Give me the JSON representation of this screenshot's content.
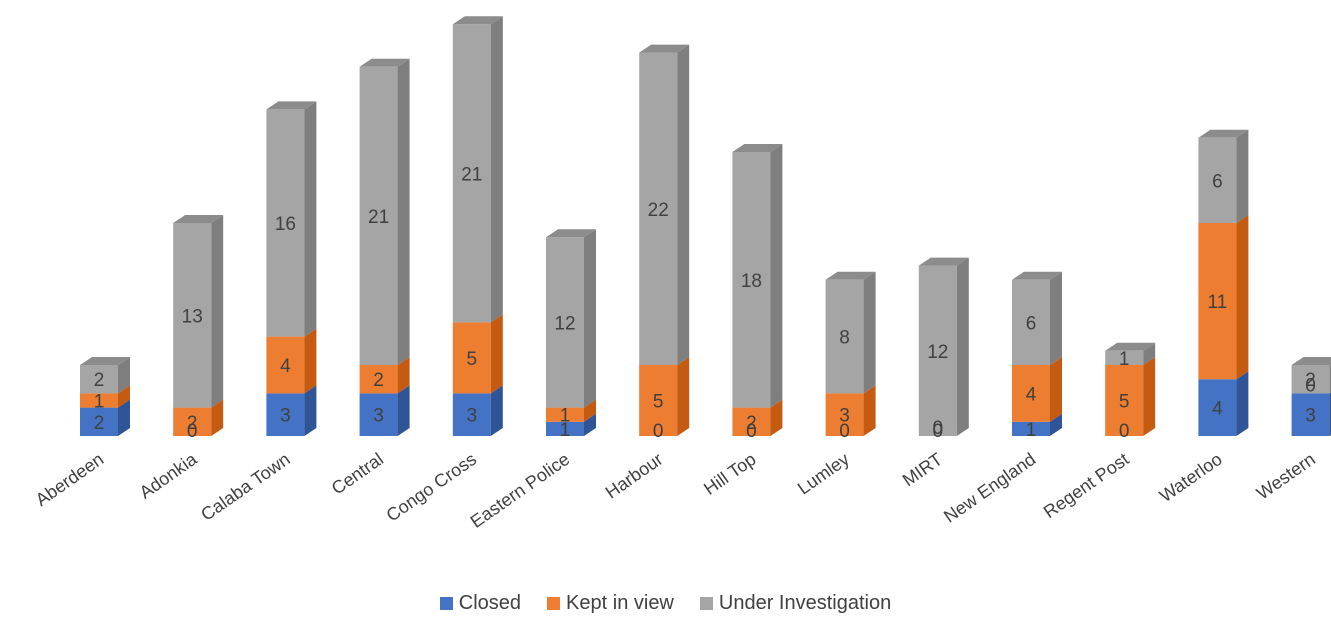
{
  "chart_data": {
    "type": "bar",
    "stacked": true,
    "three_d": true,
    "categories": [
      "Aberdeen",
      "Adonkia",
      "Calaba Town",
      "Central",
      "Congo Cross",
      "Eastern Police",
      "Harbour",
      "Hill Top",
      "Lumley",
      "MIRT",
      "New England",
      "Regent Post",
      "Waterloo",
      "Western"
    ],
    "series": [
      {
        "name": "Closed",
        "color": "#4472C4",
        "values": [
          2,
          0,
          3,
          3,
          3,
          1,
          0,
          0,
          0,
          0,
          1,
          0,
          4,
          3
        ]
      },
      {
        "name": "Kept in view",
        "color": "#ED7D31",
        "values": [
          1,
          2,
          4,
          2,
          5,
          1,
          5,
          2,
          3,
          0,
          4,
          5,
          11,
          0
        ]
      },
      {
        "name": "Under Investigation",
        "color": "#A5A5A5",
        "values": [
          2,
          13,
          16,
          21,
          21,
          12,
          22,
          18,
          8,
          12,
          6,
          1,
          6,
          2
        ]
      }
    ],
    "title": "",
    "xlabel": "",
    "ylabel": "",
    "ylim": [
      0,
      30
    ],
    "grid": false,
    "legend": "bottom"
  }
}
